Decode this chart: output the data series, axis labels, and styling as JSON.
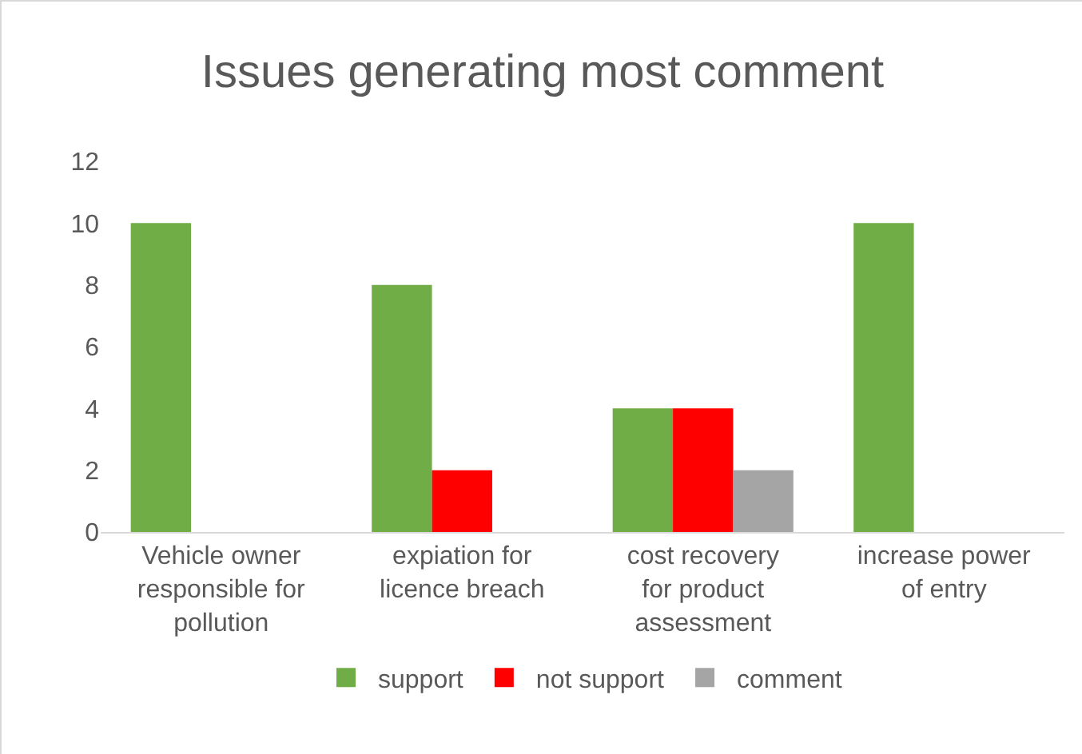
{
  "chart_data": {
    "type": "bar",
    "title": "Issues generating most comment",
    "categories": [
      "Vehicle owner responsible for pollution",
      "expiation for licence breach",
      "cost recovery for product assessment",
      "increase power of entry"
    ],
    "series": [
      {
        "name": "support",
        "color": "#70ad47",
        "values": [
          10,
          8,
          4,
          10
        ]
      },
      {
        "name": "not support",
        "color": "#ff0000",
        "values": [
          0,
          2,
          4,
          0
        ]
      },
      {
        "name": "comment",
        "color": "#a5a5a5",
        "values": [
          0,
          0,
          2,
          0
        ]
      }
    ],
    "ylim": [
      0,
      12
    ],
    "yticks": [
      0,
      2,
      4,
      6,
      8,
      10,
      12
    ],
    "grid": false,
    "legend": "bottom"
  }
}
